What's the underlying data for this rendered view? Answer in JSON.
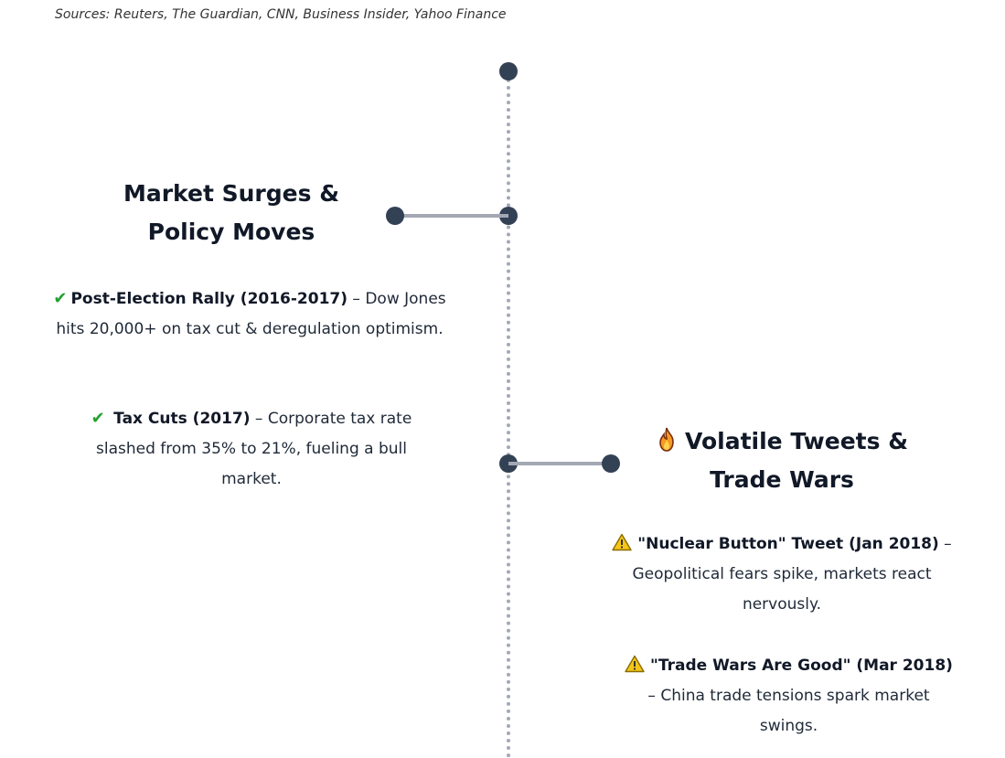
{
  "sources": "Sources: Reuters, The Guardian, CNN, Business Insider, Yahoo Finance",
  "left_section": {
    "title_line1": "Market Surges &",
    "title_line2": "Policy Moves",
    "items": [
      {
        "icon": "check-icon",
        "heading": "Post-Election Rally (2016-2017)",
        "text": " – Dow Jones hits 20,000+ on tax cut & deregulation optimism."
      },
      {
        "icon": "check-icon",
        "heading": "Tax Cuts (2017)",
        "text": " – Corporate tax rate slashed from 35% to 21%, fueling a bull market."
      }
    ]
  },
  "right_section": {
    "icon": "fire-icon",
    "title_line1": "Volatile Tweets &",
    "title_line2": "Trade Wars",
    "items": [
      {
        "icon": "warning-icon",
        "heading": "\"Nuclear Button\" Tweet (Jan 2018)",
        "text": " – Geopolitical fears spike, markets react nervously."
      },
      {
        "icon": "warning-icon",
        "heading": "\"Trade Wars Are Good\" (Mar 2018)",
        "text": " – China trade tensions spark market swings."
      }
    ]
  },
  "colors": {
    "dot": "#334155",
    "line": "#a3a8b4",
    "check": "#22a02e",
    "warning": "#f5c518"
  }
}
